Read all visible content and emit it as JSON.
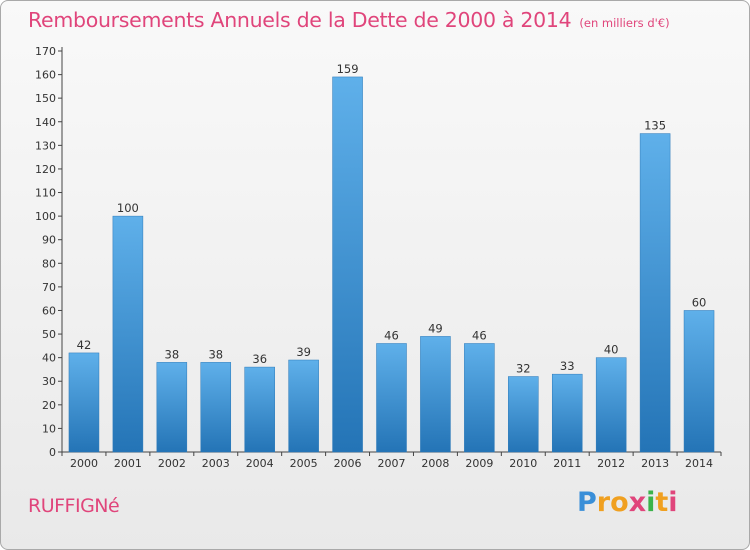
{
  "title": "Remboursements Annuels de la Dette de 2000 à 2014",
  "unit_note": "(en milliers d'€)",
  "commune": "RUFFIGNé",
  "logo": {
    "letters": [
      "P",
      "r",
      "o",
      "x",
      "i",
      "t",
      "i"
    ]
  },
  "colors": {
    "bar_light": "#5aaae6",
    "bar_dark": "#2576b8",
    "title": "#e0457b"
  },
  "chart_data": {
    "type": "bar",
    "title": "Remboursements Annuels de la Dette de 2000 à 2014",
    "xlabel": "",
    "ylabel": "",
    "categories": [
      "2000",
      "2001",
      "2002",
      "2003",
      "2004",
      "2005",
      "2006",
      "2007",
      "2008",
      "2009",
      "2010",
      "2011",
      "2012",
      "2013",
      "2014"
    ],
    "values": [
      42,
      100,
      38,
      38,
      36,
      39,
      159,
      46,
      49,
      46,
      32,
      33,
      40,
      135,
      60
    ],
    "ylim": [
      0,
      170
    ],
    "yticks": [
      0,
      10,
      20,
      30,
      40,
      50,
      60,
      70,
      80,
      90,
      100,
      110,
      120,
      130,
      140,
      150,
      160,
      170
    ],
    "grid": false,
    "data_labels": true
  }
}
